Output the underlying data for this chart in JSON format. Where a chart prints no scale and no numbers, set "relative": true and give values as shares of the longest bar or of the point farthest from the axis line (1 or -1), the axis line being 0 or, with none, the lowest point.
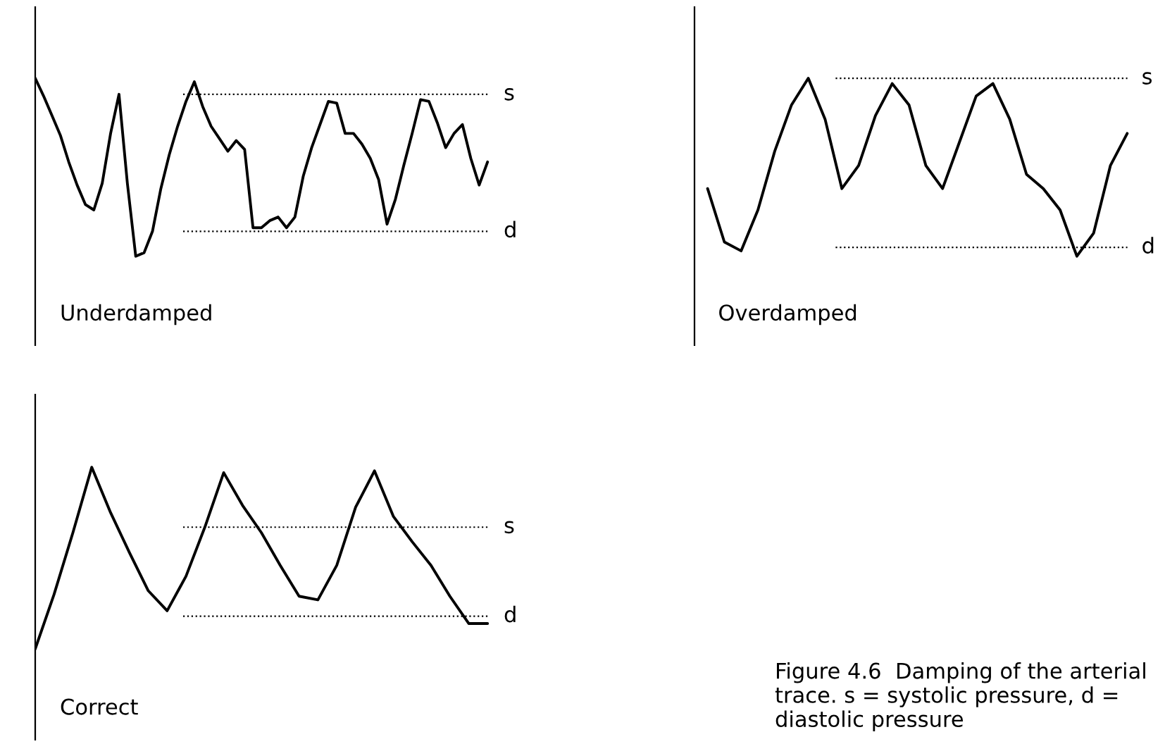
{
  "chart_data": [
    {
      "type": "line",
      "relative": true,
      "color": "#000000",
      "categories": [
        null,
        null,
        null,
        null,
        null,
        null,
        null,
        null,
        null,
        null,
        null,
        null,
        null,
        null,
        null,
        null,
        null,
        null,
        null,
        null,
        null,
        null,
        null,
        null,
        null,
        null,
        null,
        null,
        null,
        null,
        null,
        null,
        null,
        null,
        null,
        null,
        null,
        null,
        null,
        null,
        null,
        null,
        null,
        null,
        null,
        null,
        null,
        null,
        null,
        null,
        null,
        null,
        null,
        null,
        null
      ],
      "values": [
        1.0,
        0.9,
        0.79,
        0.68,
        0.53,
        0.4,
        0.29,
        0.26,
        0.41,
        0.69,
        0.91,
        0.41,
        0.0,
        0.02,
        0.14,
        0.38,
        0.57,
        0.73,
        0.87,
        0.98,
        0.84,
        0.73,
        0.66,
        0.59,
        0.65,
        0.6,
        0.16,
        0.16,
        0.2,
        0.22,
        0.16,
        0.22,
        0.45,
        0.61,
        0.74,
        0.87,
        0.86,
        0.69,
        0.69,
        0.63,
        0.55,
        0.43,
        0.18,
        0.32,
        0.51,
        0.69,
        0.88,
        0.87,
        0.75,
        0.61,
        0.69,
        0.74,
        0.55,
        0.4,
        0.53
      ],
      "ref_lines": [
        {
          "axis": "y",
          "value": 0.91,
          "label": "s",
          "line_style": "dotted"
        },
        {
          "axis": "y",
          "value": 0.14,
          "label": "d",
          "line_style": "dotted"
        }
      ],
      "annotations": [
        "Underdamped"
      ]
    },
    {
      "type": "line",
      "relative": true,
      "color": "#000000",
      "categories": [
        null,
        null,
        null,
        null,
        null,
        null,
        null,
        null,
        null,
        null,
        null,
        null,
        null,
        null,
        null,
        null,
        null,
        null,
        null,
        null,
        null,
        null,
        null,
        null,
        null,
        null
      ],
      "values": [
        0.38,
        0.08,
        0.03,
        0.26,
        0.59,
        0.85,
        1.0,
        0.77,
        0.38,
        0.51,
        0.79,
        0.97,
        0.85,
        0.51,
        0.38,
        0.64,
        0.9,
        0.97,
        0.77,
        0.46,
        0.38,
        0.26,
        0.0,
        0.13,
        0.51,
        0.69
      ],
      "ref_lines": [
        {
          "axis": "y",
          "value": 1.0,
          "label": "s",
          "line_style": "dotted"
        },
        {
          "axis": "y",
          "value": 0.05,
          "label": "d",
          "line_style": "dotted"
        }
      ],
      "annotations": [
        "Overdamped"
      ]
    },
    {
      "type": "line",
      "relative": true,
      "color": "#000000",
      "categories": [
        null,
        null,
        null,
        null,
        null,
        null,
        null,
        null,
        null,
        null,
        null,
        null,
        null,
        null,
        null,
        null,
        null,
        null,
        null,
        null,
        null,
        null,
        null,
        null,
        null
      ],
      "values": [
        0.0,
        0.3,
        0.64,
        1.0,
        0.75,
        0.53,
        0.32,
        0.21,
        0.4,
        0.67,
        0.97,
        0.79,
        0.64,
        0.46,
        0.29,
        0.27,
        0.46,
        0.78,
        0.98,
        0.73,
        0.59,
        0.46,
        0.29,
        0.14,
        0.14
      ],
      "ref_lines": [
        {
          "axis": "y",
          "value": 0.67,
          "label": "s",
          "line_style": "dotted"
        },
        {
          "axis": "y",
          "value": 0.18,
          "label": "d",
          "line_style": "dotted"
        }
      ],
      "annotations": [
        "Correct",
        "Figure 4.6  Damping of the arterial trace. s = systolic pressure, d = diastolic pressure"
      ]
    }
  ]
}
